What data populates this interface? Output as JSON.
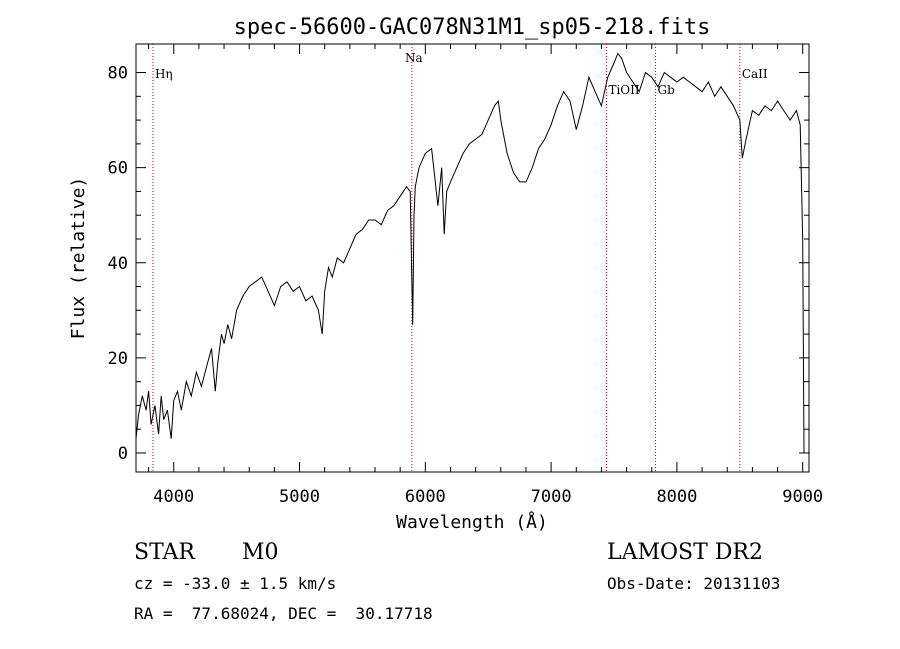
{
  "chart_data": {
    "type": "line",
    "title": "spec-56600-GAC078N31M1_sp05-218.fits",
    "xlabel": "Wavelength (Å)",
    "ylabel": "Flux (relative)",
    "xlim": [
      3700,
      9050
    ],
    "ylim": [
      -4,
      86
    ],
    "xticks": [
      4000,
      5000,
      6000,
      7000,
      8000,
      9000
    ],
    "yticks": [
      0,
      20,
      40,
      60,
      80
    ],
    "grid": false,
    "series": [
      {
        "x": [
          3700,
          3720,
          3750,
          3780,
          3800,
          3820,
          3850,
          3880,
          3900,
          3920,
          3950,
          3980,
          4000,
          4030,
          4060,
          4100,
          4140,
          4180,
          4220,
          4260,
          4300,
          4330,
          4350,
          4380,
          4400,
          4430,
          4460,
          4500,
          4550,
          4600,
          4650,
          4700,
          4750,
          4800,
          4850,
          4900,
          4950,
          5000,
          5050,
          5100,
          5150,
          5180,
          5200,
          5230,
          5260,
          5300,
          5350,
          5400,
          5450,
          5500,
          5550,
          5600,
          5650,
          5700,
          5750,
          5800,
          5850,
          5880,
          5890,
          5900,
          5910,
          5920,
          5950,
          6000,
          6050,
          6100,
          6130,
          6150,
          6170,
          6200,
          6250,
          6300,
          6350,
          6400,
          6450,
          6500,
          6550,
          6580,
          6600,
          6650,
          6700,
          6750,
          6800,
          6850,
          6900,
          6950,
          7000,
          7050,
          7100,
          7150,
          7200,
          7250,
          7300,
          7350,
          7400,
          7450,
          7500,
          7530,
          7560,
          7600,
          7650,
          7700,
          7750,
          7800,
          7850,
          7900,
          7950,
          8000,
          8050,
          8100,
          8150,
          8200,
          8250,
          8300,
          8350,
          8400,
          8450,
          8500,
          8520,
          8550,
          8600,
          8650,
          8700,
          8750,
          8800,
          8850,
          8900,
          8950,
          8980,
          9000,
          9010
        ],
        "values": [
          3,
          8,
          12,
          9,
          13,
          6,
          10,
          4,
          12,
          7,
          9,
          3,
          11,
          13,
          9,
          15,
          12,
          17,
          14,
          18,
          22,
          13,
          19,
          25,
          23,
          27,
          24,
          30,
          33,
          35,
          36,
          37,
          34,
          31,
          35,
          36,
          34,
          35,
          32,
          33,
          30,
          25,
          34,
          39,
          37,
          41,
          40,
          43,
          46,
          47,
          49,
          49,
          48,
          51,
          52,
          54,
          56,
          55,
          40,
          27,
          50,
          56,
          60,
          63,
          64,
          52,
          60,
          46,
          55,
          57,
          60,
          63,
          65,
          66,
          67,
          70,
          73,
          74,
          70,
          63,
          59,
          57,
          57,
          60,
          64,
          66,
          69,
          73,
          76,
          74,
          68,
          73,
          79,
          76,
          73,
          79,
          82,
          84,
          83,
          80,
          78,
          76,
          80,
          79,
          77,
          80,
          79,
          78,
          79,
          78,
          77,
          76,
          78,
          75,
          77,
          75,
          73,
          70,
          62,
          66,
          72,
          71,
          73,
          72,
          74,
          72,
          70,
          72,
          69,
          45,
          0
        ]
      }
    ],
    "lines": [
      {
        "label": "Hη",
        "x": 3835
      },
      {
        "label": "Na",
        "x": 5893
      },
      {
        "label": "TiOII",
        "x": 7440
      },
      {
        "label": "Gb",
        "x": 7830
      },
      {
        "label": "CaII",
        "x": 8500
      }
    ]
  },
  "footer": {
    "object_class": "STAR",
    "subclass": "M0",
    "survey": "LAMOST DR2",
    "redshift": "cz = -33.0 ± 1.5 km/s",
    "obs_date": "Obs-Date: 20131103",
    "coords": "RA =  77.68024, DEC =  30.17718"
  },
  "colors": {
    "axis": "#000000",
    "spectrum": "#000000",
    "marker_line": "#cc0000"
  }
}
